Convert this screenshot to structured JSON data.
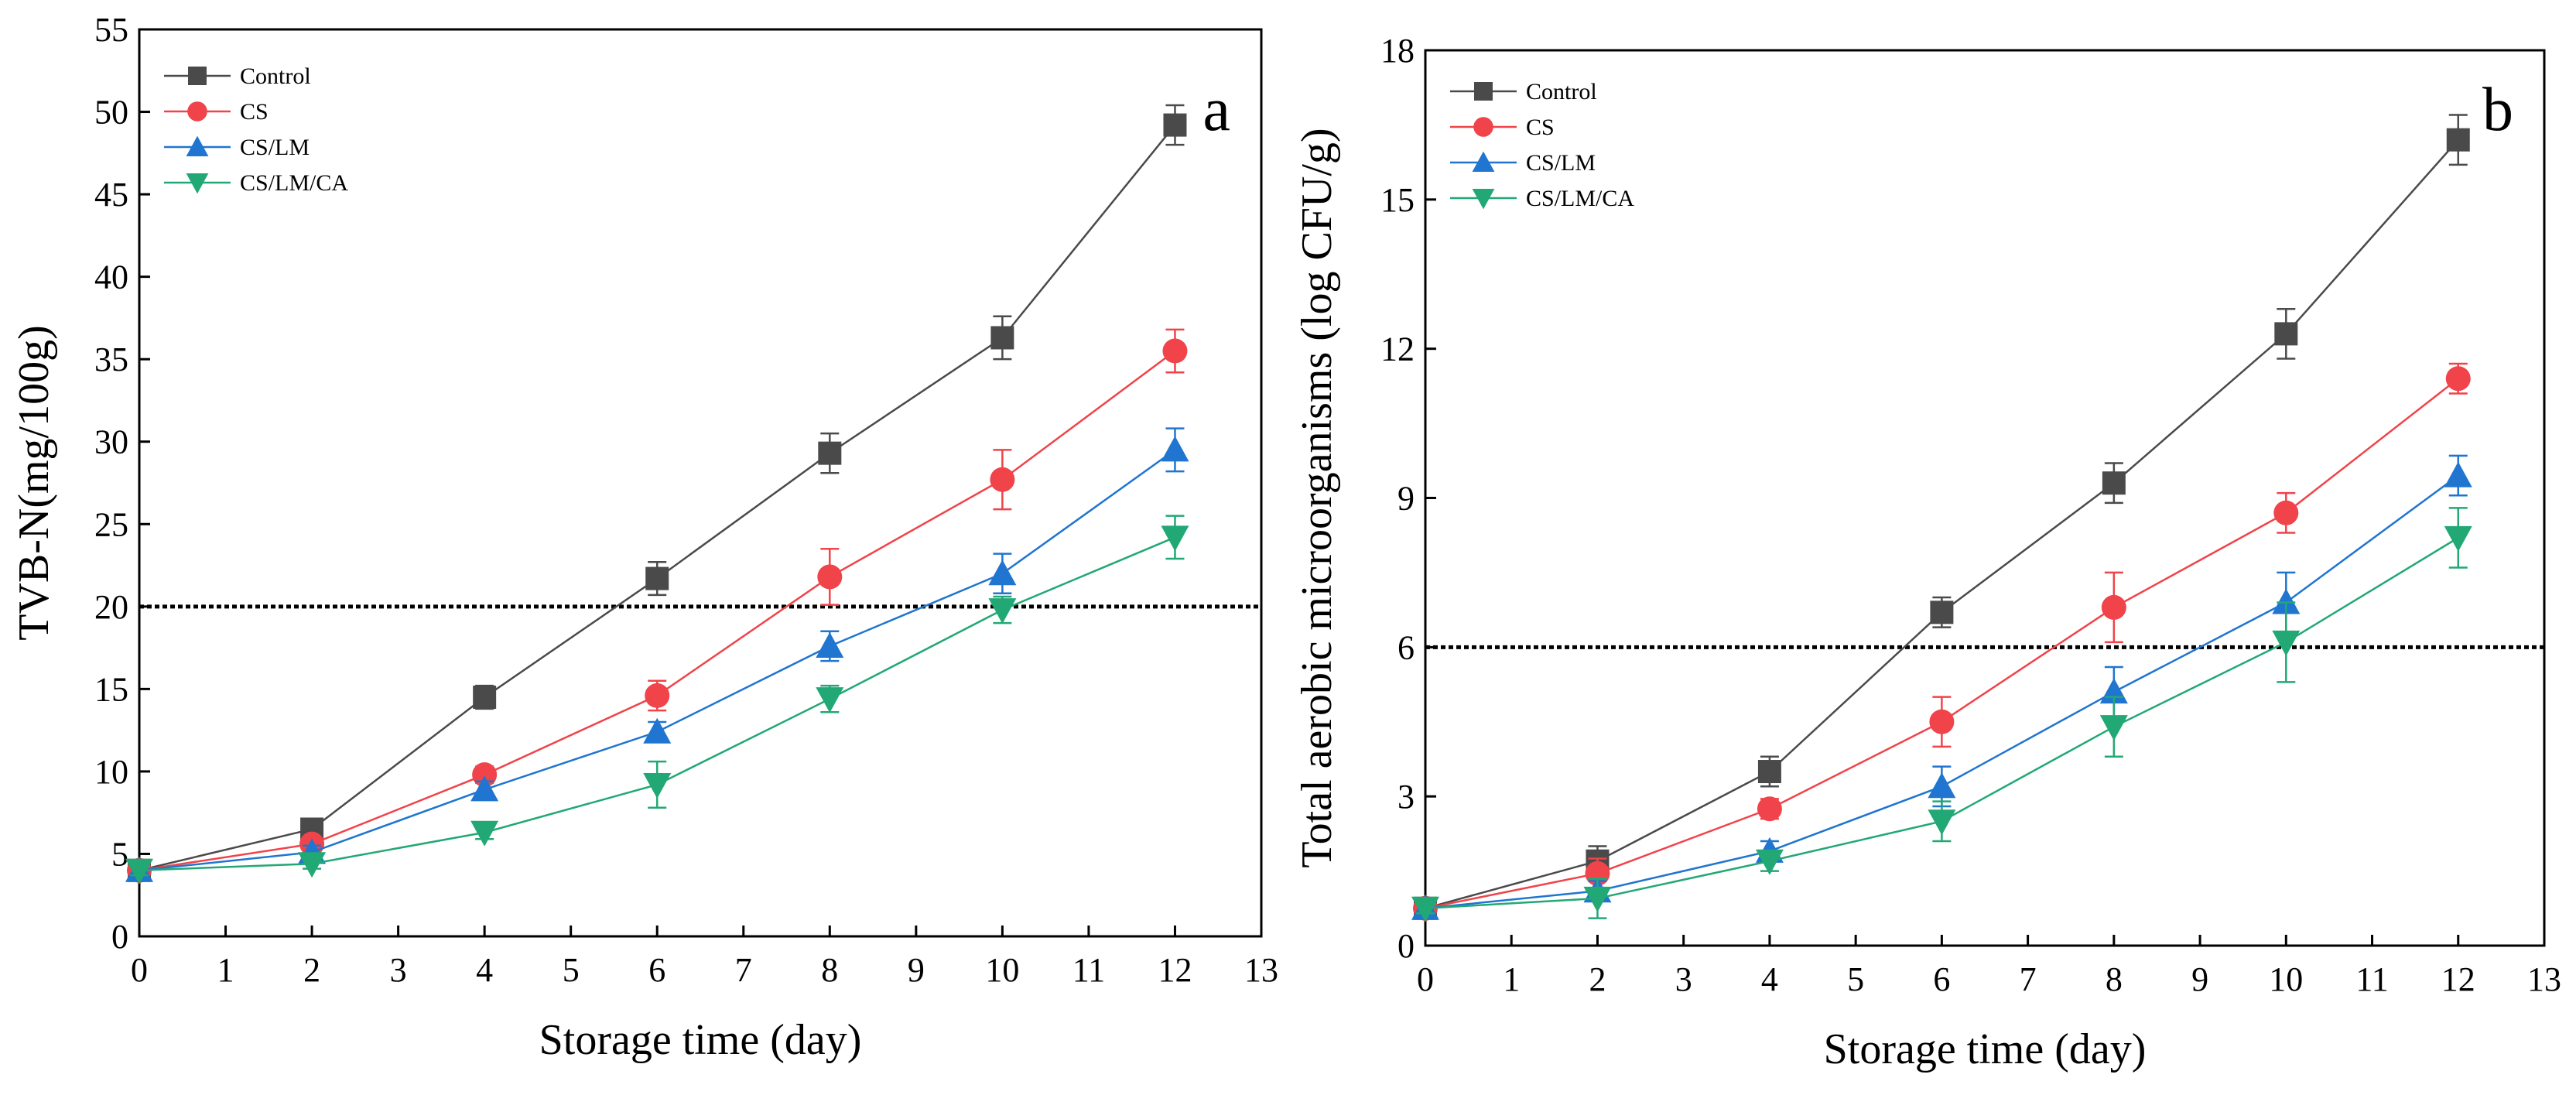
{
  "chart_data": [
    {
      "type": "line",
      "panel_label": "a",
      "xlabel": "Storage time (day)",
      "ylabel": "TVB-N(mg/100g)",
      "xlim": [
        0,
        13
      ],
      "ylim": [
        0,
        55
      ],
      "x_ticks": [
        0,
        1,
        2,
        3,
        4,
        5,
        6,
        7,
        8,
        9,
        10,
        11,
        12,
        13
      ],
      "y_ticks": [
        0,
        5,
        10,
        15,
        20,
        25,
        30,
        35,
        40,
        45,
        50,
        55
      ],
      "reference_line": 20,
      "legend_position": "top-left",
      "x": [
        0,
        2,
        4,
        6,
        8,
        10,
        12
      ],
      "series": [
        {
          "name": "Control",
          "color": "#4a4a4a",
          "marker": "square",
          "values": [
            4.0,
            6.5,
            14.5,
            21.7,
            29.3,
            36.3,
            49.2
          ],
          "errors": [
            0.3,
            0.5,
            0.7,
            1.0,
            1.2,
            1.3,
            1.2
          ]
        },
        {
          "name": "CS",
          "color": "#f0434a",
          "marker": "circle",
          "values": [
            4.0,
            5.6,
            9.8,
            14.6,
            21.8,
            27.7,
            35.5
          ],
          "errors": [
            0.3,
            0.4,
            0.5,
            0.9,
            1.7,
            1.8,
            1.3
          ]
        },
        {
          "name": "CS/LM",
          "color": "#1f75d0",
          "marker": "triangle-up",
          "values": [
            4.0,
            5.1,
            8.9,
            12.4,
            17.6,
            22.0,
            29.5
          ],
          "errors": [
            0.3,
            0.4,
            0.5,
            0.6,
            0.9,
            1.2,
            1.3
          ]
        },
        {
          "name": "CS/LM/CA",
          "color": "#22a875",
          "marker": "triangle-down",
          "values": [
            4.0,
            4.4,
            6.3,
            9.2,
            14.4,
            19.8,
            24.2
          ],
          "errors": [
            0.3,
            0.3,
            0.4,
            1.4,
            0.8,
            0.8,
            1.3
          ]
        }
      ]
    },
    {
      "type": "line",
      "panel_label": "b",
      "xlabel": "Storage time (day)",
      "ylabel": "Total aerobic microorganisms (log CFU/g)",
      "xlim": [
        0,
        13
      ],
      "ylim": [
        0,
        18
      ],
      "x_ticks": [
        0,
        1,
        2,
        3,
        4,
        5,
        6,
        7,
        8,
        9,
        10,
        11,
        12,
        13
      ],
      "y_ticks": [
        0,
        3,
        6,
        9,
        12,
        15,
        18
      ],
      "reference_line": 6,
      "legend_position": "top-left",
      "x": [
        0,
        2,
        4,
        6,
        8,
        10,
        12
      ],
      "series": [
        {
          "name": "Control",
          "color": "#4a4a4a",
          "marker": "square",
          "values": [
            0.75,
            1.7,
            3.5,
            6.7,
            9.3,
            12.3,
            16.2
          ],
          "errors": [
            0.1,
            0.3,
            0.3,
            0.3,
            0.4,
            0.5,
            0.5
          ]
        },
        {
          "name": "CS",
          "color": "#f0434a",
          "marker": "circle",
          "values": [
            0.75,
            1.45,
            2.75,
            4.5,
            6.8,
            8.7,
            11.4
          ],
          "errors": [
            0.1,
            0.3,
            0.2,
            0.5,
            0.7,
            0.4,
            0.3
          ]
        },
        {
          "name": "CS/LM",
          "color": "#1f75d0",
          "marker": "triangle-up",
          "values": [
            0.75,
            1.1,
            1.9,
            3.2,
            5.1,
            6.9,
            9.45
          ],
          "errors": [
            0.1,
            0.2,
            0.2,
            0.4,
            0.5,
            0.6,
            0.4
          ]
        },
        {
          "name": "CS/LM/CA",
          "color": "#22a875",
          "marker": "triangle-down",
          "values": [
            0.75,
            0.95,
            1.7,
            2.5,
            4.4,
            6.1,
            8.2
          ],
          "errors": [
            0.1,
            0.4,
            0.2,
            0.4,
            0.6,
            0.8,
            0.6
          ]
        }
      ]
    }
  ]
}
